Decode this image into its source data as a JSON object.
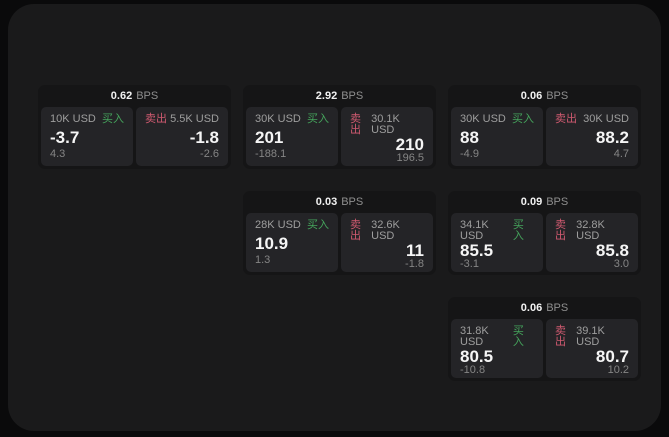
{
  "labels": {
    "bps_unit": "BPS",
    "buy": "买入",
    "sell": "卖出"
  },
  "colors": {
    "buy": "#45a45c",
    "sell": "#d05a70"
  },
  "cards": [
    {
      "bps": "0.62",
      "buy": {
        "notional": "10K USD",
        "value": "-3.7",
        "sub": "4.3"
      },
      "sell": {
        "notional": "5.5K USD",
        "value": "-1.8",
        "sub": "-2.6"
      }
    },
    {
      "bps": "2.92",
      "buy": {
        "notional": "30K USD",
        "value": "201",
        "sub": "-188.1"
      },
      "sell": {
        "notional": "30.1K USD",
        "value": "210",
        "sub": "196.5"
      }
    },
    {
      "bps": "0.06",
      "buy": {
        "notional": "30K USD",
        "value": "88",
        "sub": "-4.9"
      },
      "sell": {
        "notional": "30K USD",
        "value": "88.2",
        "sub": "4.7"
      }
    },
    {
      "bps": "0.03",
      "buy": {
        "notional": "28K USD",
        "value": "10.9",
        "sub": "1.3"
      },
      "sell": {
        "notional": "32.6K USD",
        "value": "11",
        "sub": "-1.8"
      }
    },
    {
      "bps": "0.09",
      "buy": {
        "notional": "34.1K USD",
        "value": "85.5",
        "sub": "-3.1"
      },
      "sell": {
        "notional": "32.8K USD",
        "value": "85.8",
        "sub": "3.0"
      }
    },
    {
      "bps": "0.06",
      "buy": {
        "notional": "31.8K USD",
        "value": "80.5",
        "sub": "-10.8"
      },
      "sell": {
        "notional": "39.1K USD",
        "value": "80.7",
        "sub": "10.2"
      }
    }
  ]
}
